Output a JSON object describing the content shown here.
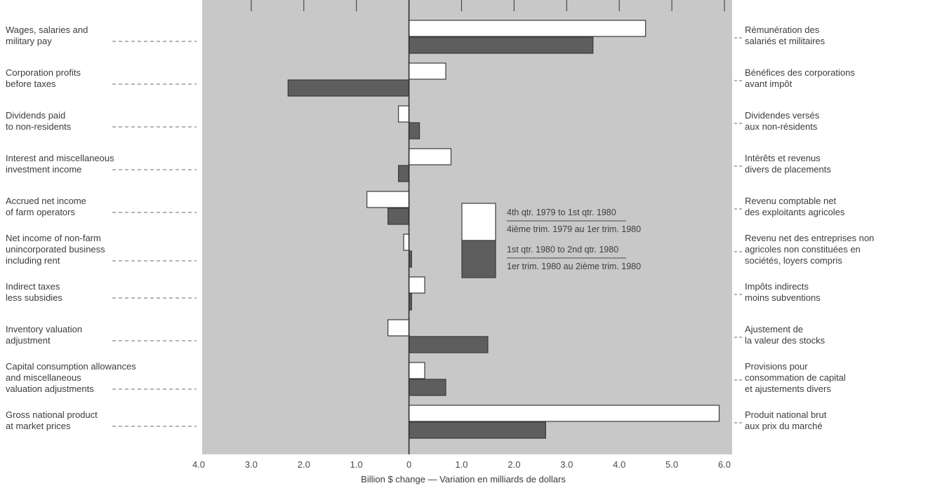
{
  "chart_data": {
    "type": "bar",
    "orientation": "horizontal",
    "categories": [
      {
        "en": [
          "Wages, salaries and",
          "military pay"
        ],
        "fr": [
          "Rémunération des",
          "salariés et militaires"
        ]
      },
      {
        "en": [
          "Corporation profits",
          "before taxes"
        ],
        "fr": [
          "Bénéfices des corporations",
          "avant impôt"
        ]
      },
      {
        "en": [
          "Dividends paid",
          "to non-residents"
        ],
        "fr": [
          "Dividendes versés",
          "aux non-résidents"
        ]
      },
      {
        "en": [
          "Interest and miscellaneous",
          "investment income"
        ],
        "fr": [
          "Intérêts et revenus",
          "divers de placements"
        ]
      },
      {
        "en": [
          "Accrued net income",
          "of farm operators"
        ],
        "fr": [
          "Revenu comptable net",
          "des exploitants agricoles"
        ]
      },
      {
        "en": [
          "Net income of non-farm",
          "unincorporated business",
          "including rent"
        ],
        "fr": [
          "Revenu net des entreprises non",
          "agricoles non constituées en",
          "sociétés, loyers compris"
        ]
      },
      {
        "en": [
          "Indirect taxes",
          "less subsidies"
        ],
        "fr": [
          "Impôts indirects",
          "moins subventions"
        ]
      },
      {
        "en": [
          "Inventory valuation",
          "adjustment"
        ],
        "fr": [
          "Ajustement de",
          "la valeur des stocks"
        ]
      },
      {
        "en": [
          "Capital consumption allowances",
          "and miscellaneous",
          "valuation adjustments"
        ],
        "fr": [
          "Provisions pour",
          "consommation de capital",
          "et ajustements divers"
        ]
      },
      {
        "en": [
          "Gross national product",
          "at market prices"
        ],
        "fr": [
          "Produit national brut",
          "aux prix du marché"
        ]
      }
    ],
    "series": [
      {
        "name_lines": [
          "4th qtr. 1979 to 1st qtr. 1980",
          "4ième trim. 1979 au 1er trim. 1980"
        ],
        "color": "#ffffff",
        "values": [
          4.5,
          0.7,
          -0.2,
          0.8,
          -0.8,
          -0.1,
          0.3,
          -0.4,
          0.3,
          5.9
        ]
      },
      {
        "name_lines": [
          "1st qtr. 1980 to 2nd qtr. 1980",
          "1er trim. 1980 au 2ième trim. 1980"
        ],
        "color": "#5e5e5e",
        "values": [
          3.5,
          -2.3,
          0.2,
          -0.2,
          -0.4,
          0.05,
          0.05,
          1.5,
          0.7,
          2.6
        ]
      }
    ],
    "xlim": [
      -4.0,
      6.0
    ],
    "xticks": [
      -4.0,
      -3.0,
      -2.0,
      -1.0,
      0.0,
      1.0,
      2.0,
      3.0,
      4.0,
      5.0,
      6.0
    ],
    "xtick_labels": [
      "4.0",
      "3.0",
      "2.0",
      "1.0",
      "0",
      "1.0",
      "2.0",
      "3.0",
      "4.0",
      "5.0",
      "6.0"
    ],
    "xlabel": "Billion $ change — Variation en milliards de dollars",
    "plot_bg": "#c8c8c8",
    "legend_placement": "center"
  }
}
